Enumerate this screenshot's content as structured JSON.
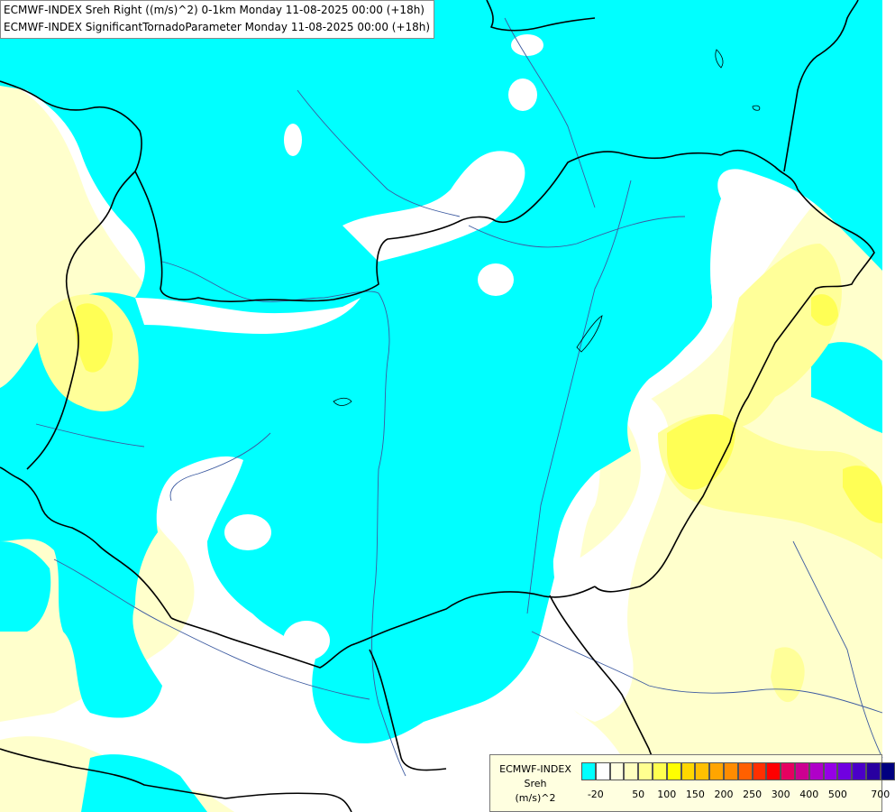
{
  "title": {
    "line1": "ECMWF-INDEX Sreh Right ((m/s)^2) 0-1km Monday 11-08-2025 00:00 (+18h)",
    "line2": "ECMWF-INDEX SignificantTornadoParameter Monday 11-08-2025 00:00 (+18h)"
  },
  "legend": {
    "line1": "ECMWF-INDEX",
    "line2": "Sreh",
    "line3": "(m/s)^2",
    "colors": [
      "#00ffff",
      "#ffffff",
      "#ffffe0",
      "#ffffc0",
      "#ffff90",
      "#ffff50",
      "#ffff00",
      "#ffd700",
      "#ffc000",
      "#ffa500",
      "#ff8c00",
      "#ff6000",
      "#ff3000",
      "#ff0000",
      "#e60060",
      "#cc0090",
      "#b000c8",
      "#9600e6",
      "#7000e0",
      "#4b00c8",
      "#2800a0",
      "#000080"
    ],
    "ticks": [
      "-20",
      "50",
      "100",
      "150",
      "200",
      "250",
      "300",
      "400",
      "500",
      "700"
    ]
  },
  "map": {
    "colors": {
      "cyan": "#00ffff",
      "pale_yellow": "#ffffcc",
      "yellow": "#ffff99",
      "strong_yellow": "#ffff55",
      "white": "#ffffff",
      "border": "#000000",
      "river": "#3c5aa0"
    }
  }
}
